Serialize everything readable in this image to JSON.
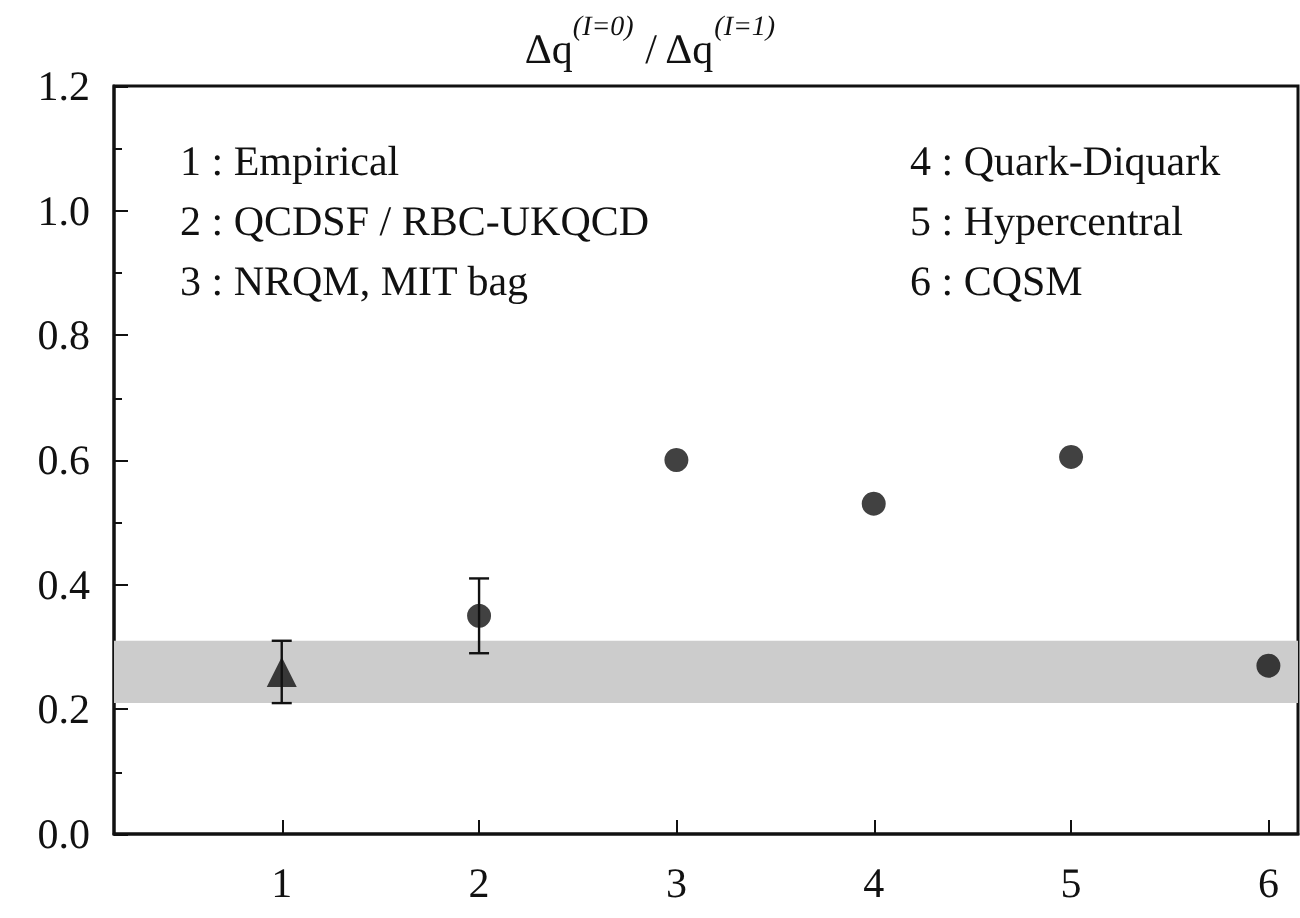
{
  "chart_data": {
    "type": "scatter",
    "title": "Δq$^{(I=0)}$ / Δq$^{(I=1)}$",
    "series": [
      {
        "x": [
          1
        ],
        "values": [
          0.26
        ],
        "color": "#111111",
        "marker": "triangle",
        "errors": [
          [
            0.21,
            0.31
          ]
        ]
      },
      {
        "x": [
          2,
          3,
          4,
          5,
          6
        ],
        "values": [
          0.35,
          0.6,
          0.53,
          0.605,
          0.27
        ],
        "color": "#111111",
        "marker": "circle",
        "errors": [
          [
            0.29,
            0.41
          ],
          null,
          null,
          null,
          null
        ]
      }
    ],
    "xlim": [
      0.15,
      6.15
    ],
    "xticks": [
      1,
      2,
      3,
      4,
      5,
      6
    ],
    "ylim": [
      0,
      1.2
    ],
    "yticks": [
      {
        "value": 0,
        "label": "0.0"
      },
      {
        "value": 0.2,
        "label": "0.2"
      },
      {
        "value": 0.4,
        "label": "0.4"
      },
      {
        "value": 0.6,
        "label": "0.6"
      },
      {
        "value": 0.8,
        "label": "0.8"
      },
      {
        "value": 1.0,
        "label": "1.0"
      },
      {
        "value": 1.2,
        "label": "1.2"
      }
    ],
    "bands": [
      {
        "axis": "y",
        "from": 0.21,
        "to": 0.31,
        "color": "#cccccc"
      }
    ],
    "annotations": [
      "1 : Empirical",
      "2 : QCDSF / RBC-UKQCD",
      "3 : NRQM, MIT bag",
      "4 : Quark-Diquark",
      "5 : Hypercentral",
      "6 : CQSM"
    ]
  }
}
